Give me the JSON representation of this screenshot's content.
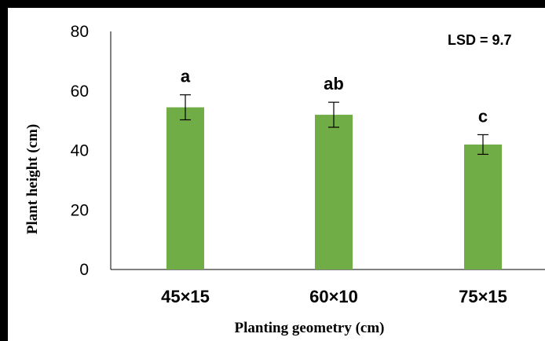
{
  "chart_data": {
    "type": "bar",
    "categories": [
      "45×15",
      "60×10",
      "75×15"
    ],
    "values": [
      54.5,
      52,
      42
    ],
    "errors": [
      4.2,
      4.2,
      3.3
    ],
    "significance_letters": [
      "a",
      "ab",
      "c"
    ],
    "xlabel": "Planting geometry  (cm)",
    "ylabel": "Plant height (cm)",
    "ylim": [
      0,
      80
    ],
    "yticks": [
      "0",
      "20",
      "40",
      "60",
      "80"
    ],
    "ytick_values": [
      0,
      20,
      40,
      60,
      80
    ],
    "annotation": "LSD = 9.7",
    "grid": false,
    "bar_color": "#70ad47",
    "error_bar_color": "#000000"
  }
}
